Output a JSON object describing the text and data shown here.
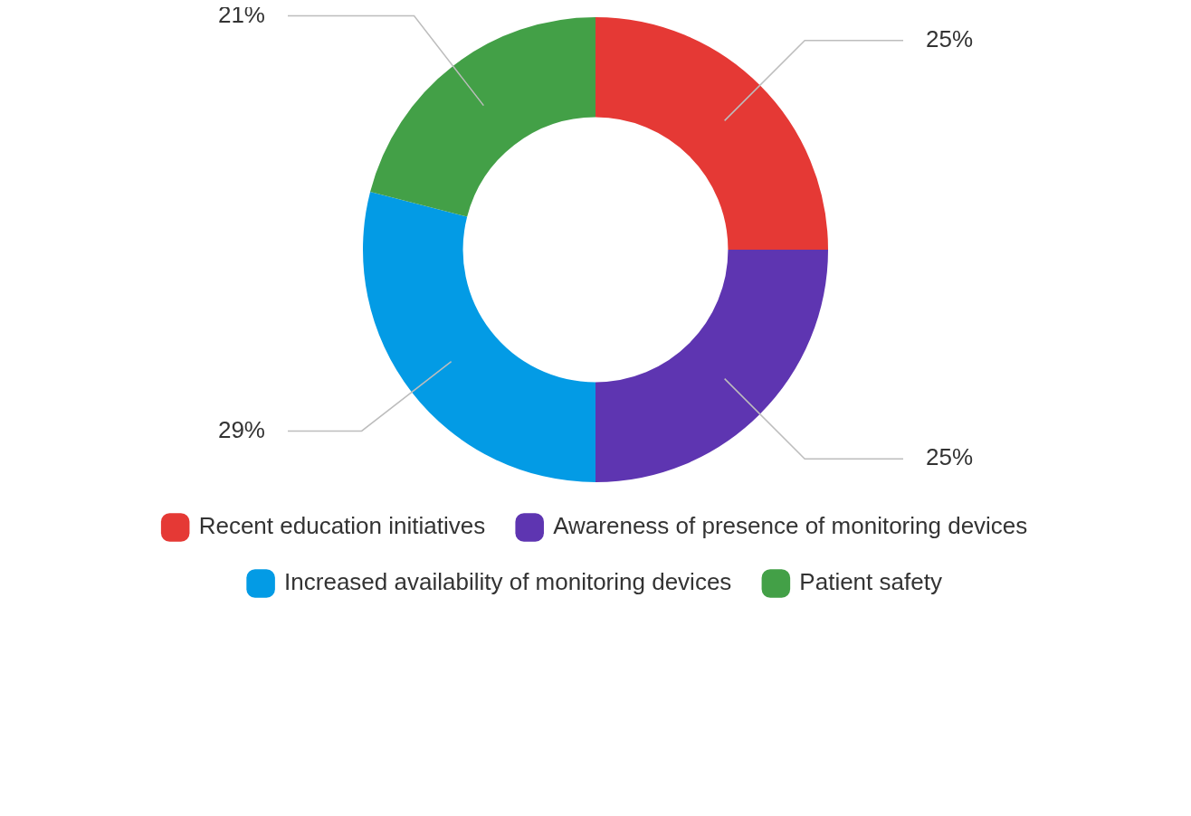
{
  "chart_data": {
    "type": "donut",
    "categories": [
      "Recent education initiatives",
      "Awareness of presence of monitoring devices",
      "Increased availability of monitoring devices",
      "Patient safety"
    ],
    "values": [
      25,
      25,
      29,
      21
    ],
    "colors": [
      "#e53935",
      "#5e35b1",
      "#039be5",
      "#43a047"
    ],
    "value_labels": [
      "25%",
      "25%",
      "29%",
      "21%"
    ],
    "legend": "bottom"
  }
}
